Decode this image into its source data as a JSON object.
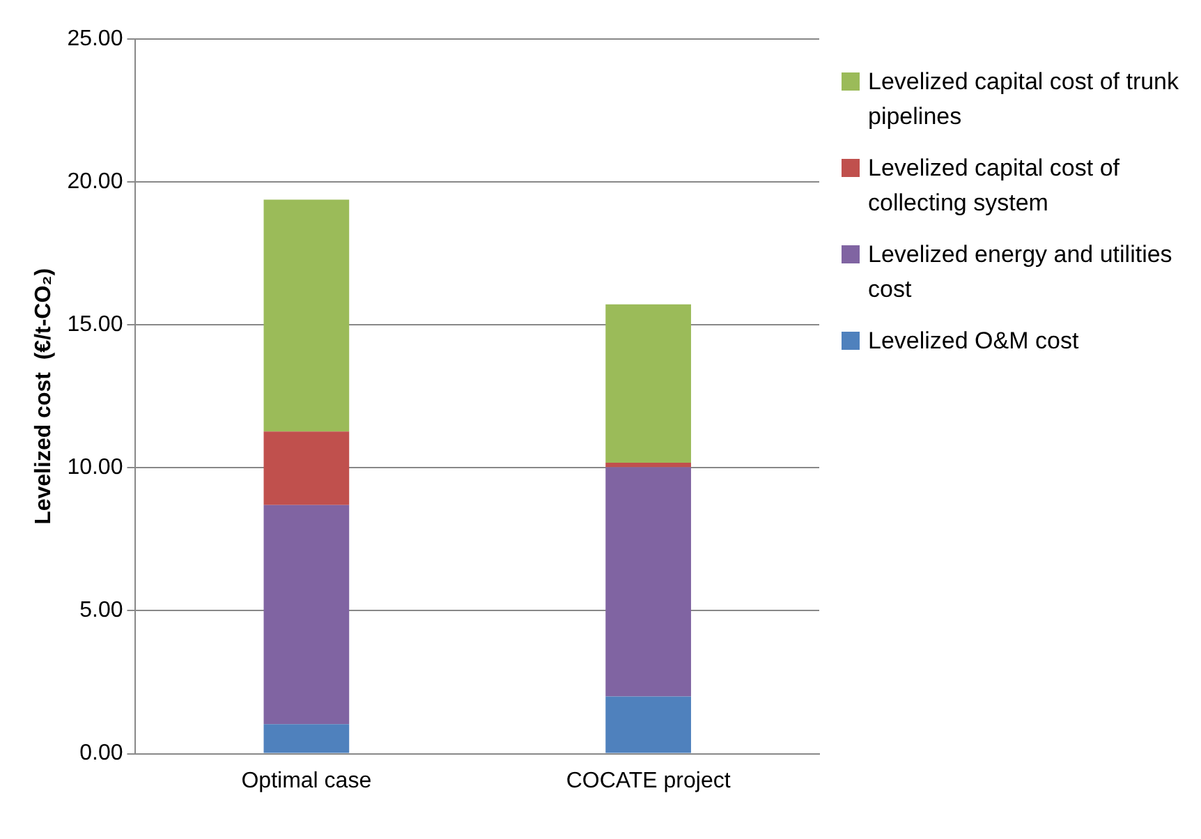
{
  "chart_data": {
    "type": "bar",
    "stacked": true,
    "ylabel": "Levelized cost  (€/t-CO₂)",
    "categories": [
      "Optimal case",
      "COCATE project"
    ],
    "series": [
      {
        "name": "Levelized O&M cost",
        "color": "#4f81bd",
        "values": [
          1.03,
          2.0
        ]
      },
      {
        "name": "Levelized energy and utilities cost",
        "color": "#8064a2",
        "values": [
          7.67,
          8.02
        ]
      },
      {
        "name": "Levelized capital cost  of collecting system",
        "color": "#c0504d",
        "values": [
          2.57,
          0.16
        ]
      },
      {
        "name": "Levelized capital cost of trunk pipelines",
        "color": "#9bbb59",
        "values": [
          8.11,
          5.54
        ]
      }
    ],
    "ylim": [
      0,
      25
    ],
    "yticks": [
      {
        "value": 0,
        "label": "0.00"
      },
      {
        "value": 5,
        "label": "5.00"
      },
      {
        "value": 10,
        "label": "10.00"
      },
      {
        "value": 15,
        "label": "15.00"
      },
      {
        "value": 20,
        "label": "20.00"
      },
      {
        "value": 25,
        "label": "25.00"
      }
    ],
    "grid": "y",
    "legend": "right"
  }
}
